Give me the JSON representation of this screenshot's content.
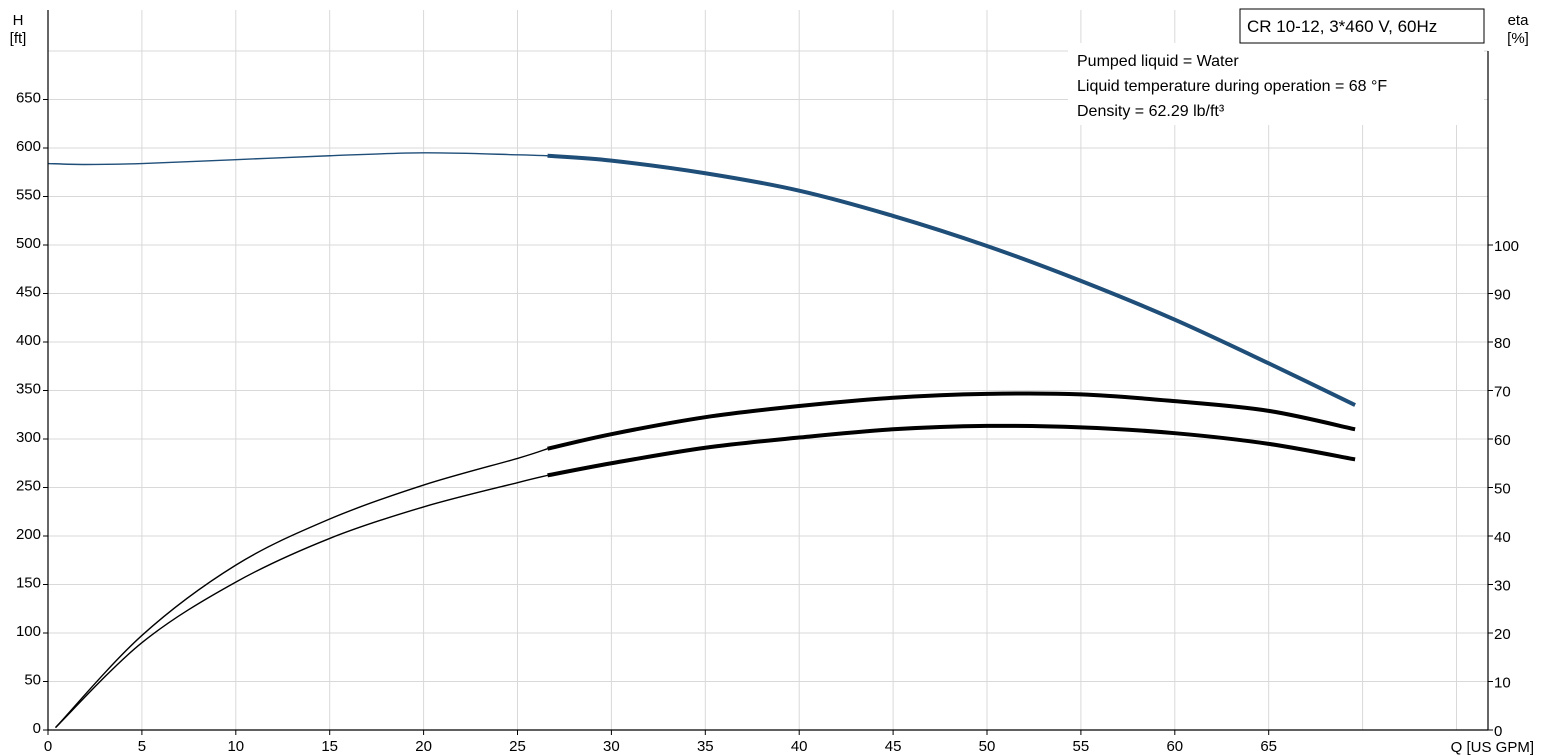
{
  "chart_data": {
    "type": "line",
    "title": "CR 10-12, 3*460 V, 60Hz",
    "info_lines": [
      "Pumped liquid = Water",
      "Liquid temperature during operation = 68 °F",
      "Density = 62.29 lb/ft³"
    ],
    "xlabel": "Q [US GPM]",
    "ylabel_left": {
      "symbol": "H",
      "unit": "[ft]"
    },
    "ylabel_right": {
      "symbol": "eta",
      "unit": "[%]"
    },
    "xlim": [
      0,
      77
    ],
    "ylim_left": [
      0,
      700
    ],
    "ylim_right": [
      0,
      140
    ],
    "x_ticks": [
      0,
      5,
      10,
      15,
      20,
      25,
      30,
      35,
      40,
      45,
      50,
      55,
      60,
      65,
      70,
      75
    ],
    "x_tick_labels": [
      "0",
      "5",
      "10",
      "15",
      "20",
      "25",
      "30",
      "35",
      "40",
      "45",
      "50",
      "55",
      "60",
      "65"
    ],
    "y_left_ticks": [
      "0",
      "50",
      "100",
      "150",
      "200",
      "250",
      "300",
      "350",
      "400",
      "450",
      "500",
      "550",
      "600",
      "650"
    ],
    "y_right_ticks": [
      "0",
      "10",
      "20",
      "30",
      "40",
      "50",
      "60",
      "70",
      "80",
      "90",
      "100"
    ],
    "grid": true,
    "series": [
      {
        "axis": "left",
        "color": "#1f4e79",
        "x": [
          0,
          2,
          5,
          10,
          15,
          20,
          25,
          26.6,
          30,
          35,
          40,
          45,
          50,
          55,
          60,
          65,
          69.6
        ],
        "y": [
          584,
          583,
          584,
          588,
          592,
          595,
          593,
          592,
          587,
          574,
          556,
          530,
          499,
          463,
          423,
          378,
          335
        ],
        "bold_from_x": 26.6
      },
      {
        "axis": "right",
        "color": "#000000",
        "x": [
          0.4,
          5,
          10,
          15,
          20,
          25,
          26.6,
          30,
          35,
          40,
          45,
          50,
          55,
          60,
          65,
          69.6
        ],
        "y": [
          0.5,
          19.5,
          34,
          43.5,
          50.5,
          56,
          58,
          61,
          64.5,
          66.8,
          68.5,
          69.3,
          69.2,
          67.8,
          65.8,
          62
        ],
        "bold_from_x": 26.6
      },
      {
        "axis": "right",
        "color": "#000000",
        "x": [
          0.4,
          5,
          10,
          15,
          20,
          25,
          26.6,
          30,
          35,
          40,
          45,
          50,
          55,
          60,
          65,
          69.6
        ],
        "y": [
          0.5,
          18,
          30.5,
          39.5,
          46,
          51,
          52.5,
          55,
          58.2,
          60.3,
          62,
          62.7,
          62.4,
          61.2,
          59,
          55.8
        ],
        "bold_from_x": 26.6
      }
    ]
  }
}
